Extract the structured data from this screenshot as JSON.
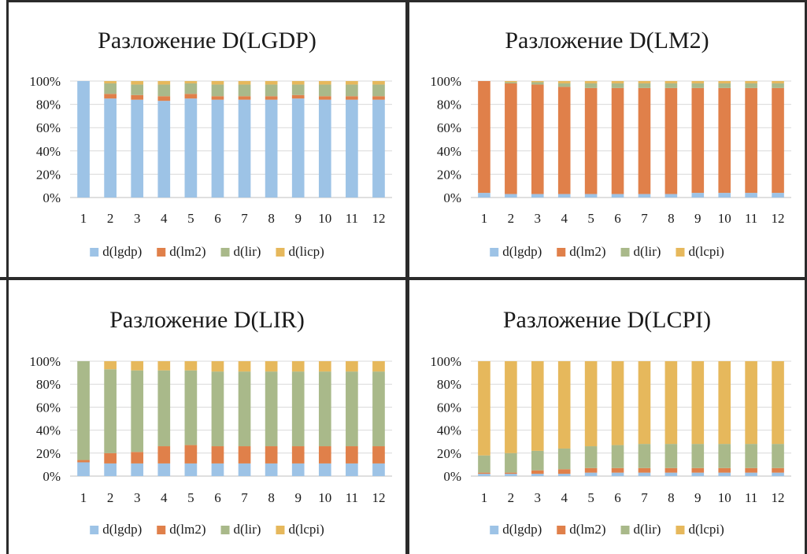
{
  "colors": {
    "d_lgdp": "#9dc3e6",
    "d_lm2": "#e0804a",
    "d_lir": "#a9b98a",
    "d_lcpi": "#e6b85c",
    "grid": "#d9d9d9",
    "axis": "#bfbfbf",
    "text": "#1a1a1a"
  },
  "chart_data": [
    {
      "type": "bar",
      "stacked": "percent",
      "title": "Разложение D(LGDP)",
      "categories": [
        "1",
        "2",
        "3",
        "4",
        "5",
        "6",
        "7",
        "8",
        "9",
        "10",
        "11",
        "12"
      ],
      "yticks": [
        "0%",
        "20%",
        "40%",
        "60%",
        "80%",
        "100%"
      ],
      "ylim": [
        0,
        100
      ],
      "grid": true,
      "legend": "bottom",
      "series": [
        {
          "name": "d(lgdp)",
          "color_key": "d_lgdp",
          "values": [
            100,
            85,
            84,
            83,
            85,
            84,
            84,
            84,
            85,
            84,
            84,
            84
          ]
        },
        {
          "name": "d(lm2)",
          "color_key": "d_lm2",
          "values": [
            0,
            4,
            4,
            4,
            4,
            3,
            3,
            3,
            3,
            3,
            3,
            3
          ]
        },
        {
          "name": "d(lir)",
          "color_key": "d_lir",
          "values": [
            0,
            9,
            9,
            10,
            9,
            10,
            10,
            10,
            9,
            10,
            10,
            10
          ]
        },
        {
          "name": "d(licp)",
          "color_key": "d_lcpi",
          "values": [
            0,
            2,
            3,
            3,
            2,
            3,
            3,
            3,
            3,
            3,
            3,
            3
          ]
        }
      ]
    },
    {
      "type": "bar",
      "stacked": "percent",
      "title": "Разложение D(LM2)",
      "categories": [
        "1",
        "2",
        "3",
        "4",
        "5",
        "6",
        "7",
        "8",
        "9",
        "10",
        "11",
        "12"
      ],
      "yticks": [
        "0%",
        "20%",
        "40%",
        "60%",
        "80%",
        "100%"
      ],
      "ylim": [
        0,
        100
      ],
      "grid": true,
      "legend": "bottom",
      "series": [
        {
          "name": "d(lgdp)",
          "color_key": "d_lgdp",
          "values": [
            4,
            3,
            3,
            3,
            3,
            3,
            3,
            3,
            4,
            4,
            4,
            4
          ]
        },
        {
          "name": "d(lm2)",
          "color_key": "d_lm2",
          "values": [
            96,
            95,
            94,
            92,
            91,
            91,
            91,
            91,
            90,
            90,
            90,
            90
          ]
        },
        {
          "name": "d(lir)",
          "color_key": "d_lir",
          "values": [
            0,
            1,
            2,
            3,
            4,
            4,
            4,
            4,
            4,
            4,
            4,
            4
          ]
        },
        {
          "name": "d(lcpi)",
          "color_key": "d_lcpi",
          "values": [
            0,
            1,
            1,
            2,
            2,
            2,
            2,
            2,
            2,
            2,
            2,
            2
          ]
        }
      ]
    },
    {
      "type": "bar",
      "stacked": "percent",
      "title": "Разложение D(LIR)",
      "categories": [
        "1",
        "2",
        "3",
        "4",
        "5",
        "6",
        "7",
        "8",
        "9",
        "10",
        "11",
        "12"
      ],
      "yticks": [
        "0%",
        "20%",
        "40%",
        "60%",
        "80%",
        "100%"
      ],
      "ylim": [
        0,
        100
      ],
      "grid": true,
      "legend": "bottom",
      "series": [
        {
          "name": "d(lgdp)",
          "color_key": "d_lgdp",
          "values": [
            12,
            11,
            11,
            11,
            11,
            11,
            11,
            11,
            11,
            11,
            11,
            11
          ]
        },
        {
          "name": "d(lm2)",
          "color_key": "d_lm2",
          "values": [
            2,
            9,
            10,
            15,
            16,
            15,
            15,
            15,
            15,
            15,
            15,
            15
          ]
        },
        {
          "name": "d(lir)",
          "color_key": "d_lir",
          "values": [
            86,
            73,
            71,
            66,
            65,
            65,
            65,
            65,
            65,
            65,
            65,
            65
          ]
        },
        {
          "name": "d(lcpi)",
          "color_key": "d_lcpi",
          "values": [
            0,
            7,
            8,
            8,
            8,
            9,
            9,
            9,
            9,
            9,
            9,
            9
          ]
        }
      ]
    },
    {
      "type": "bar",
      "stacked": "percent",
      "title": "Разложение D(LCPI)",
      "categories": [
        "1",
        "2",
        "3",
        "4",
        "5",
        "6",
        "7",
        "8",
        "9",
        "10",
        "11",
        "12"
      ],
      "yticks": [
        "0%",
        "20%",
        "40%",
        "60%",
        "80%",
        "100%"
      ],
      "ylim": [
        0,
        100
      ],
      "grid": true,
      "legend": "bottom",
      "series": [
        {
          "name": "d(lgdp)",
          "color_key": "d_lgdp",
          "values": [
            2,
            2,
            2,
            2,
            3,
            3,
            3,
            3,
            3,
            3,
            3,
            3
          ]
        },
        {
          "name": "d(lm2)",
          "color_key": "d_lm2",
          "values": [
            1,
            1,
            3,
            4,
            4,
            4,
            4,
            4,
            4,
            4,
            4,
            4
          ]
        },
        {
          "name": "d(lir)",
          "color_key": "d_lir",
          "values": [
            15,
            17,
            17,
            18,
            19,
            20,
            21,
            21,
            21,
            21,
            21,
            21
          ]
        },
        {
          "name": "d(lcpi)",
          "color_key": "d_lcpi",
          "values": [
            82,
            80,
            78,
            76,
            74,
            73,
            72,
            72,
            72,
            72,
            72,
            72
          ]
        }
      ]
    }
  ]
}
